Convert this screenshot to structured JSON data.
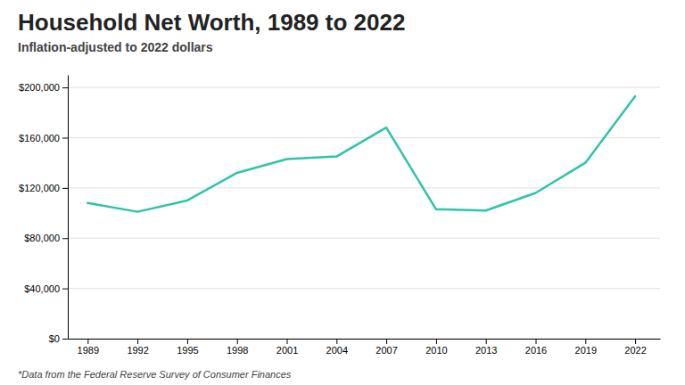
{
  "chart_data": {
    "type": "line",
    "title": "Household Net Worth, 1989 to 2022",
    "subtitle": "Inflation-adjusted to 2022 dollars",
    "footnote": "*Data from the Federal Reserve Survey of Consumer Finances",
    "x": [
      1989,
      1992,
      1995,
      1998,
      2001,
      2004,
      2007,
      2010,
      2013,
      2016,
      2019,
      2022
    ],
    "values": [
      108000,
      101000,
      110000,
      132000,
      143000,
      145000,
      168000,
      103000,
      102000,
      116000,
      140000,
      193000
    ],
    "color": "#2ec4a5",
    "xlim": [
      1987.8,
      2023.5
    ],
    "xticks": [
      1989,
      1992,
      1995,
      1998,
      2001,
      2004,
      2007,
      2010,
      2013,
      2016,
      2019,
      2022
    ],
    "ylim": [
      0,
      210000
    ],
    "yticks": [
      {
        "value": 0,
        "label": "$0"
      },
      {
        "value": 40000,
        "label": "$40,000"
      },
      {
        "value": 80000,
        "label": "$80,000"
      },
      {
        "value": 120000,
        "label": "$120,000"
      },
      {
        "value": 160000,
        "label": "$160,000"
      },
      {
        "value": 200000,
        "label": "$200,000"
      }
    ],
    "grid": true
  }
}
